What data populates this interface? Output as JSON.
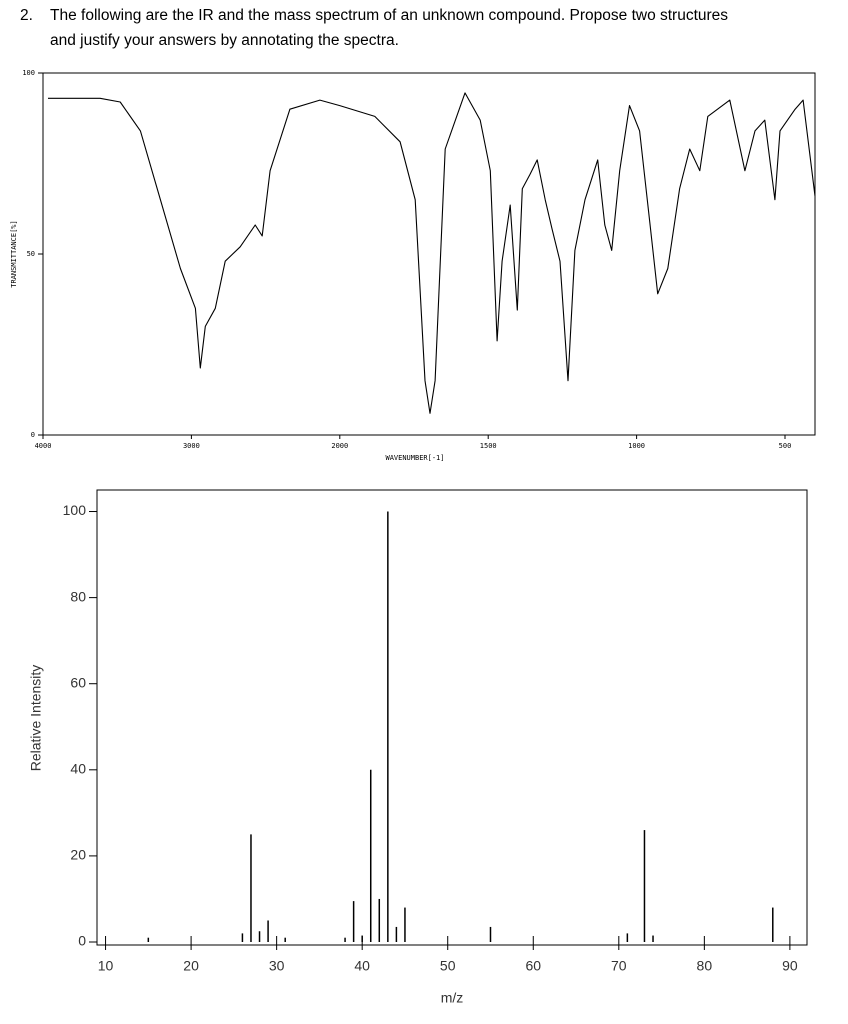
{
  "question": {
    "number": "2.",
    "lines": [
      "The following are the IR and the mass spectrum of an unknown compound. Propose two structures",
      "and justify your answers by annotating the spectra."
    ]
  },
  "chart_data": [
    {
      "type": "line",
      "x_label": "WAVENUMBER[-1]",
      "y_label": "TRANSMITTANCE[%]",
      "x": [
        3966,
        3615,
        3480,
        3344,
        3209,
        3074,
        2973,
        2940,
        2906,
        2839,
        2772,
        2671,
        2570,
        2523,
        2470,
        2336,
        2134,
        2000,
        1882,
        1797,
        1746,
        1713,
        1696,
        1679,
        1645,
        1578,
        1527,
        1493,
        1470,
        1453,
        1426,
        1402,
        1385,
        1359,
        1335,
        1308,
        1285,
        1258,
        1231,
        1208,
        1174,
        1131,
        1107,
        1084,
        1057,
        1024,
        990,
        956,
        929,
        895,
        855,
        821,
        787,
        760,
        686,
        635,
        601,
        568,
        534,
        517,
        466,
        439,
        399
      ],
      "series": [
        {
          "color": "#000000",
          "values": [
            93,
            93,
            92,
            84,
            65,
            46,
            35,
            18.5,
            30,
            35,
            48,
            52,
            58,
            55,
            73,
            90,
            92.5,
            91,
            88,
            81,
            65,
            15,
            6,
            15,
            79,
            94.5,
            87,
            73,
            26,
            48,
            63.5,
            34.5,
            68,
            72,
            76,
            65,
            57,
            48,
            15,
            51,
            65,
            76,
            58,
            51,
            73,
            91,
            84,
            59,
            39,
            46,
            68,
            79,
            73,
            88,
            92.5,
            73,
            84,
            87,
            65,
            84,
            90,
            92.5,
            66
          ]
        }
      ],
      "xlim": [
        4000,
        400
      ],
      "ylim": [
        0,
        100
      ],
      "xticks": [
        4000,
        3000,
        2000,
        1500,
        1000,
        500
      ],
      "yticks": [
        0,
        50,
        100
      ]
    },
    {
      "type": "bar",
      "x_label": "m/z",
      "y_label": "Relative Intensity",
      "x": [
        15,
        26,
        27,
        28,
        29,
        31,
        38,
        39,
        40,
        41,
        42,
        43,
        44,
        45,
        55,
        71,
        73,
        74,
        88
      ],
      "values": [
        1,
        2,
        25,
        2.5,
        5,
        1,
        1,
        9.5,
        1.5,
        40,
        10,
        100,
        3.5,
        8,
        3.5,
        2,
        26,
        1.5,
        8
      ],
      "color": "#000000",
      "xlim": [
        9,
        92
      ],
      "ylim": [
        0,
        105
      ],
      "xticks": [
        10,
        20,
        30,
        40,
        50,
        60,
        70,
        80,
        90
      ],
      "yticks": [
        0,
        20,
        40,
        60,
        80,
        100
      ]
    }
  ]
}
